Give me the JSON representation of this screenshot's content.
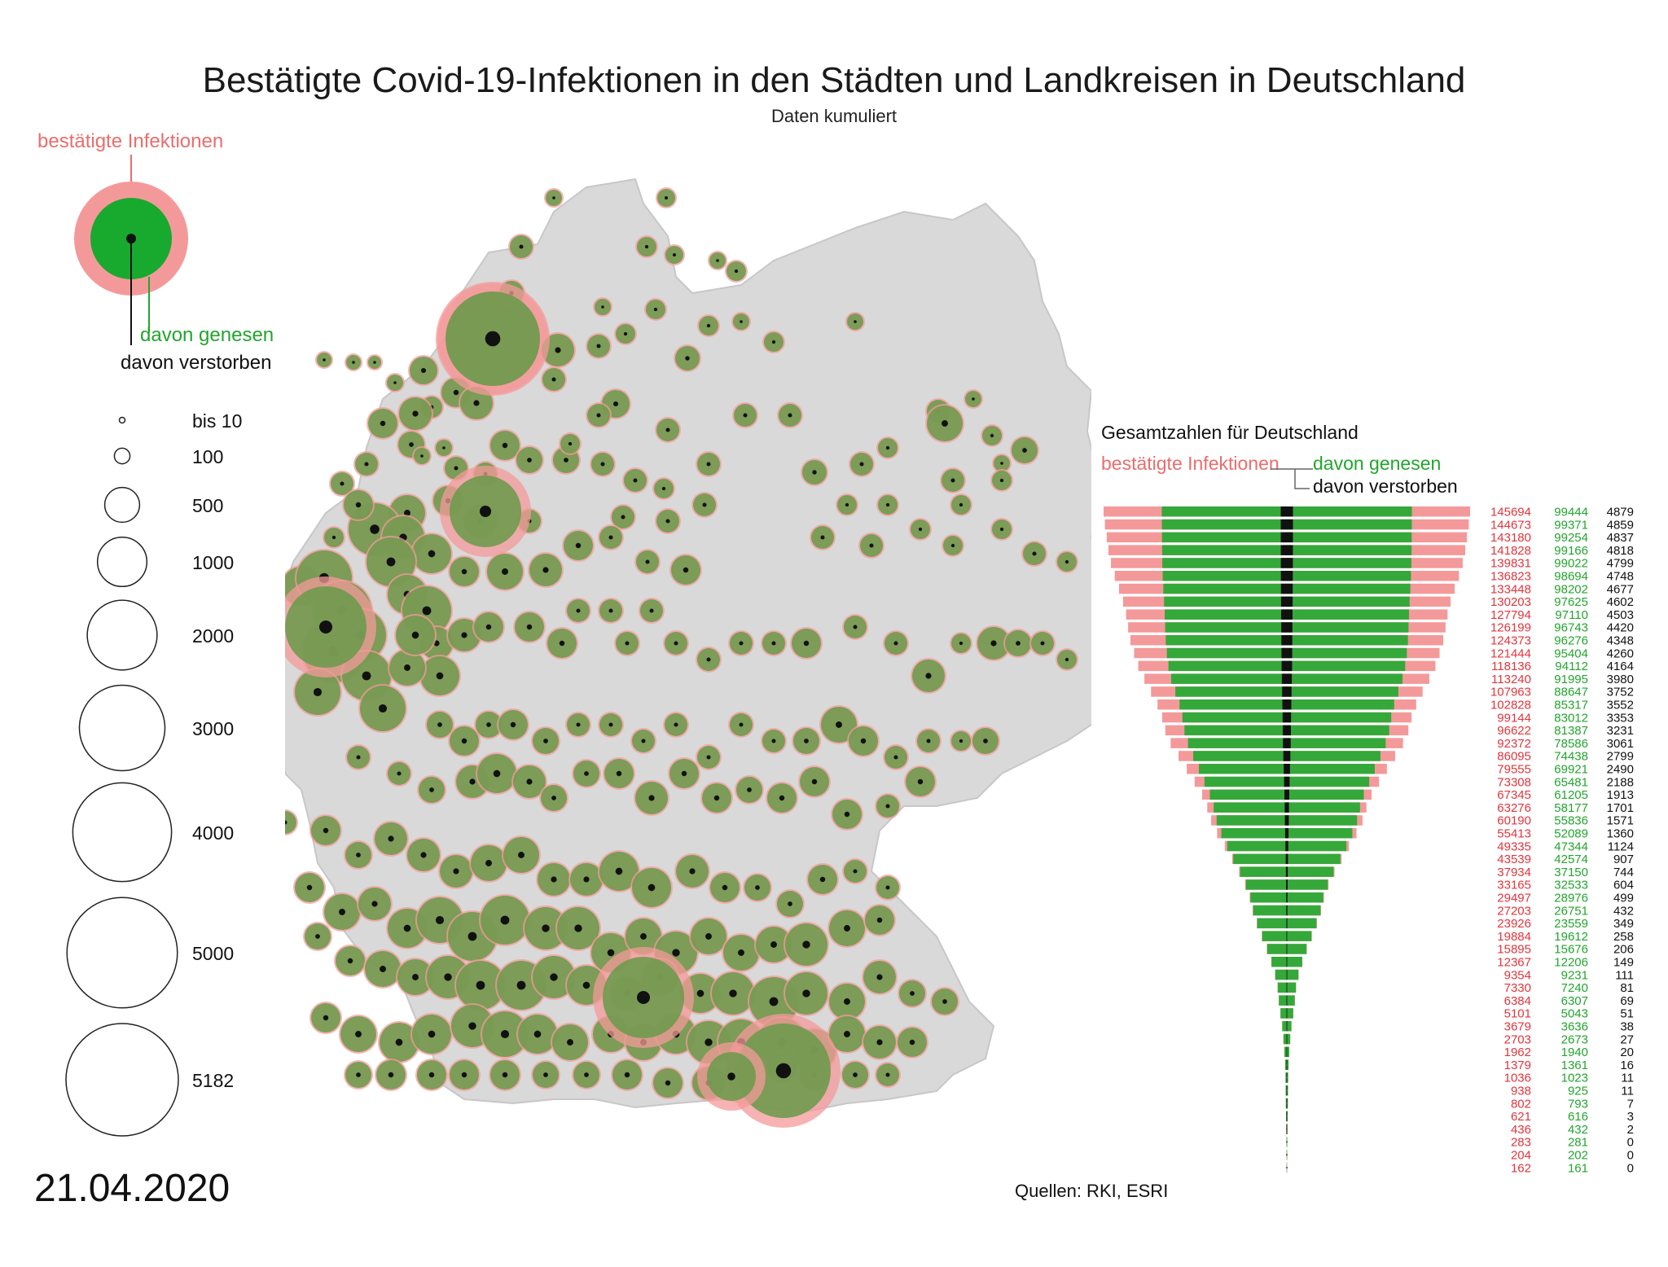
{
  "title": "Bestätigte Covid-19-Infektionen in den Städten und Landkreisen in Deutschland",
  "subtitle": "Daten kumuliert",
  "legend": {
    "confirmed": "bestätigte Infektionen",
    "recovered": "davon genesen",
    "deaths": "davon verstorben",
    "size_labels": [
      "bis 10",
      "100",
      "500",
      "1000",
      "2000",
      "3000",
      "4000",
      "5000",
      "5182"
    ]
  },
  "date": "21.04.2020",
  "sources": "Quellen: RKI, ESRI",
  "totals": {
    "title": "Gesamtzahlen für Deutschland",
    "confirmed_label": "bestätigte Infektionen",
    "recovered_label": "davon genesen",
    "deaths_label": "davon verstorben"
  },
  "colors": {
    "confirmed": "#f4999a",
    "recovered": "#35a83a",
    "deaths": "#111111",
    "map_land": "#d9d9d9",
    "map_bubble": "#6f9a4e",
    "confirmed_text": "#e3343c",
    "recovered_text": "#22a52d"
  },
  "chart_data": {
    "type": "bar",
    "orientation": "horizontal-centered",
    "title": "Gesamtzahlen für Deutschland",
    "series": [
      {
        "name": "bestätigte Infektionen",
        "values": [
          145694,
          144673,
          143180,
          141828,
          139831,
          136823,
          133448,
          130203,
          127794,
          126199,
          124373,
          121444,
          118136,
          113240,
          107963,
          102828,
          99144,
          96622,
          92372,
          86095,
          79555,
          73308,
          67345,
          63276,
          60190,
          55413,
          49335,
          43539,
          37934,
          33165,
          29497,
          27203,
          23926,
          19884,
          15895,
          12367,
          9354,
          7330,
          6384,
          5101,
          3679,
          2703,
          1962,
          1379,
          1036,
          938,
          802,
          621,
          436,
          283,
          204,
          162
        ]
      },
      {
        "name": "davon genesen",
        "values": [
          99444,
          99371,
          99254,
          99166,
          99022,
          98694,
          98202,
          97625,
          97110,
          96743,
          96276,
          95404,
          94112,
          91995,
          88647,
          85317,
          83012,
          81387,
          78586,
          74438,
          69921,
          65481,
          61205,
          58177,
          55836,
          52089,
          47344,
          42574,
          37150,
          32533,
          28976,
          26751,
          23559,
          19612,
          15676,
          12206,
          9231,
          7240,
          6307,
          5043,
          3636,
          2673,
          1940,
          1361,
          1023,
          925,
          793,
          616,
          432,
          281,
          202,
          161
        ]
      },
      {
        "name": "davon verstorben",
        "values": [
          4879,
          4859,
          4837,
          4818,
          4799,
          4748,
          4677,
          4602,
          4503,
          4420,
          4348,
          4260,
          4164,
          3980,
          3752,
          3552,
          3353,
          3231,
          3061,
          2799,
          2490,
          2188,
          1913,
          1701,
          1571,
          1360,
          1124,
          907,
          744,
          604,
          499,
          432,
          349,
          258,
          206,
          149,
          111,
          81,
          69,
          51,
          38,
          27,
          20,
          16,
          11,
          11,
          7,
          3,
          2,
          0,
          0,
          0
        ]
      }
    ],
    "map": {
      "type": "bubble-map",
      "region": "Deutschland",
      "size_scale_values": [
        10,
        100,
        500,
        1000,
        2000,
        3000,
        4000,
        5000,
        5182
      ]
    }
  }
}
